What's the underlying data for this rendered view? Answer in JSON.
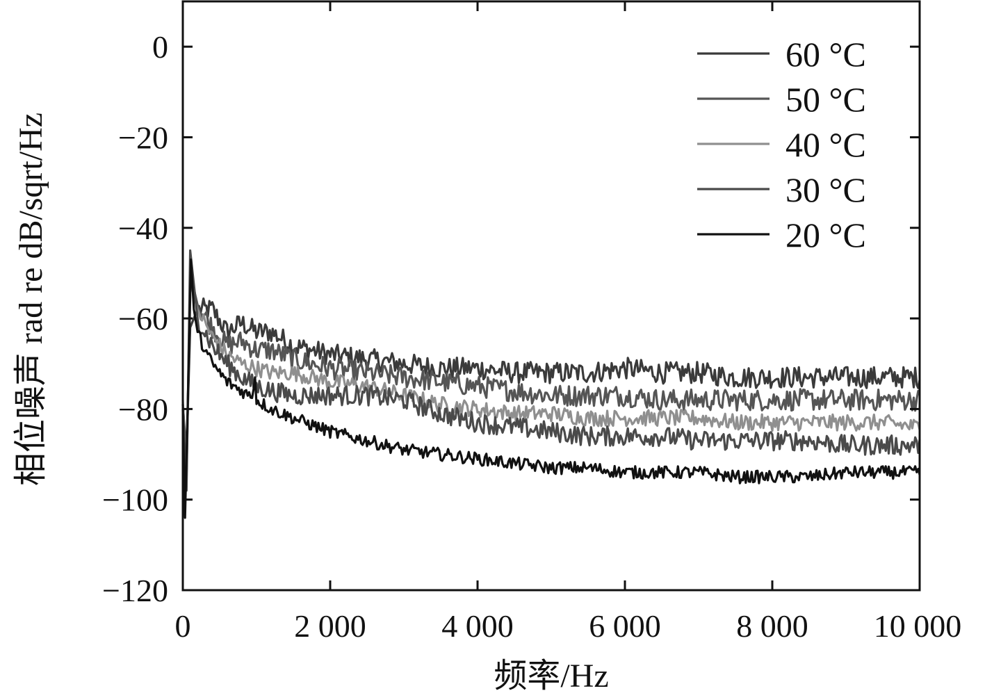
{
  "chart_data": {
    "type": "line",
    "title": "",
    "xlabel": "频率/Hz",
    "ylabel": "相位噪声 rad re dB/sqrt/Hz",
    "xlim": [
      0,
      10000
    ],
    "ylim": [
      -120,
      10
    ],
    "x_ticks": [
      {
        "value": 0,
        "label": "0"
      },
      {
        "value": 2000,
        "label": "2 000"
      },
      {
        "value": 4000,
        "label": "4 000"
      },
      {
        "value": 6000,
        "label": "6 000"
      },
      {
        "value": 8000,
        "label": "8 000"
      },
      {
        "value": 10000,
        "label": "10 000"
      }
    ],
    "y_ticks": [
      {
        "value": 0,
        "label": "0"
      },
      {
        "value": -20,
        "label": "−20"
      },
      {
        "value": -40,
        "label": "−40"
      },
      {
        "value": -60,
        "label": "−60"
      },
      {
        "value": -80,
        "label": "−80"
      },
      {
        "value": -100,
        "label": "−100"
      },
      {
        "value": -120,
        "label": "−120"
      }
    ],
    "grid": false,
    "legend_position": "top-right",
    "series": [
      {
        "name": "60 °C",
        "color": "#3a3a3a",
        "points": [
          [
            0,
            -79
          ],
          [
            50,
            -90
          ],
          [
            100,
            -62
          ],
          [
            200,
            -58
          ],
          [
            400,
            -58
          ],
          [
            600,
            -63
          ],
          [
            800,
            -61
          ],
          [
            1000,
            -63
          ],
          [
            1200,
            -63
          ],
          [
            1500,
            -66
          ],
          [
            2000,
            -68
          ],
          [
            2500,
            -69
          ],
          [
            3000,
            -70
          ],
          [
            3500,
            -71
          ],
          [
            4000,
            -71
          ],
          [
            4500,
            -72
          ],
          [
            5000,
            -72
          ],
          [
            5500,
            -72
          ],
          [
            6000,
            -71
          ],
          [
            6500,
            -72
          ],
          [
            7000,
            -72
          ],
          [
            7500,
            -73
          ],
          [
            8000,
            -73
          ],
          [
            8500,
            -73
          ],
          [
            9000,
            -73
          ],
          [
            9500,
            -73
          ],
          [
            10000,
            -73
          ]
        ]
      },
      {
        "name": "50 °C",
        "color": "#555555",
        "points": [
          [
            0,
            -79
          ],
          [
            50,
            -95
          ],
          [
            100,
            -50
          ],
          [
            200,
            -57
          ],
          [
            400,
            -62
          ],
          [
            600,
            -66
          ],
          [
            800,
            -65
          ],
          [
            1000,
            -67
          ],
          [
            1200,
            -67
          ],
          [
            1500,
            -69
          ],
          [
            2000,
            -71
          ],
          [
            2500,
            -72
          ],
          [
            3000,
            -73
          ],
          [
            3500,
            -74
          ],
          [
            4000,
            -75
          ],
          [
            4500,
            -76
          ],
          [
            5000,
            -77
          ],
          [
            5500,
            -77
          ],
          [
            6000,
            -77
          ],
          [
            6500,
            -78
          ],
          [
            7000,
            -78
          ],
          [
            7500,
            -78
          ],
          [
            8000,
            -78
          ],
          [
            8500,
            -78
          ],
          [
            9000,
            -78
          ],
          [
            9500,
            -78
          ],
          [
            10000,
            -78
          ]
        ]
      },
      {
        "name": "40 °C",
        "color": "#8f8f8f",
        "points": [
          [
            0,
            -78
          ],
          [
            50,
            -95
          ],
          [
            100,
            -52
          ],
          [
            200,
            -58
          ],
          [
            400,
            -64
          ],
          [
            600,
            -68
          ],
          [
            800,
            -70
          ],
          [
            1000,
            -71
          ],
          [
            1200,
            -72
          ],
          [
            1500,
            -72
          ],
          [
            2000,
            -74
          ],
          [
            2500,
            -75
          ],
          [
            3000,
            -77
          ],
          [
            3500,
            -79
          ],
          [
            4000,
            -80
          ],
          [
            4500,
            -81
          ],
          [
            5000,
            -81
          ],
          [
            5500,
            -82
          ],
          [
            6000,
            -82
          ],
          [
            6500,
            -82
          ],
          [
            7000,
            -82
          ],
          [
            7500,
            -83
          ],
          [
            8000,
            -83
          ],
          [
            8500,
            -83
          ],
          [
            9000,
            -83
          ],
          [
            9500,
            -83
          ],
          [
            10000,
            -84
          ]
        ]
      },
      {
        "name": "30 °C",
        "color": "#4a4a4a",
        "points": [
          [
            0,
            -79
          ],
          [
            50,
            -98
          ],
          [
            100,
            -45
          ],
          [
            200,
            -60
          ],
          [
            400,
            -66
          ],
          [
            600,
            -70
          ],
          [
            800,
            -73
          ],
          [
            1000,
            -75
          ],
          [
            1200,
            -76
          ],
          [
            1500,
            -77
          ],
          [
            2000,
            -77
          ],
          [
            2500,
            -77
          ],
          [
            3000,
            -78
          ],
          [
            3500,
            -81
          ],
          [
            4000,
            -83
          ],
          [
            4500,
            -84
          ],
          [
            5000,
            -85
          ],
          [
            5500,
            -86
          ],
          [
            6000,
            -86
          ],
          [
            6500,
            -86
          ],
          [
            7000,
            -87
          ],
          [
            7500,
            -87
          ],
          [
            8000,
            -87
          ],
          [
            8500,
            -87
          ],
          [
            9000,
            -88
          ],
          [
            9500,
            -88
          ],
          [
            10000,
            -88
          ]
        ]
      },
      {
        "name": "20 °C",
        "color": "#111111",
        "points": [
          [
            0,
            -80
          ],
          [
            30,
            -104
          ],
          [
            80,
            -70
          ],
          [
            110,
            -47
          ],
          [
            150,
            -58
          ],
          [
            200,
            -63
          ],
          [
            300,
            -67
          ],
          [
            400,
            -70
          ],
          [
            500,
            -72
          ],
          [
            600,
            -74
          ],
          [
            700,
            -75
          ],
          [
            800,
            -76
          ],
          [
            900,
            -77
          ],
          [
            950,
            -77
          ],
          [
            980,
            -73
          ],
          [
            1000,
            -78
          ],
          [
            1100,
            -79
          ],
          [
            1200,
            -80
          ],
          [
            1500,
            -82
          ],
          [
            2000,
            -85
          ],
          [
            2500,
            -87
          ],
          [
            3000,
            -89
          ],
          [
            3500,
            -90
          ],
          [
            4000,
            -91
          ],
          [
            4500,
            -92
          ],
          [
            5000,
            -93
          ],
          [
            5500,
            -93
          ],
          [
            6000,
            -94
          ],
          [
            6500,
            -94
          ],
          [
            7000,
            -94
          ],
          [
            7500,
            -95
          ],
          [
            8000,
            -95
          ],
          [
            8500,
            -95
          ],
          [
            9000,
            -94
          ],
          [
            9500,
            -94
          ],
          [
            10000,
            -94
          ]
        ]
      }
    ]
  }
}
